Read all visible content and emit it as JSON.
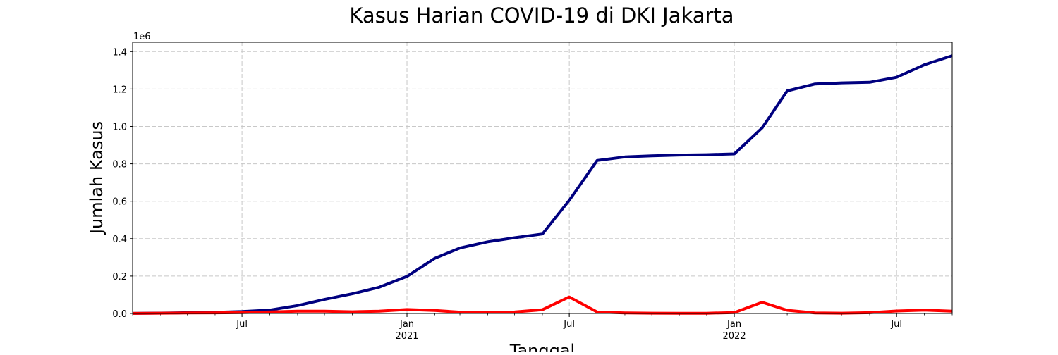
{
  "chart_data": {
    "type": "line",
    "title": "Kasus Harian COVID-19 di DKI Jakarta",
    "xlabel": "Tanggal",
    "ylabel": "Jumlah Kasus",
    "y_offset_label": "1e6",
    "y_scale_factor": 1000000,
    "ylim": [
      0,
      1450000
    ],
    "xlim": [
      "2020-03-01",
      "2022-09-01"
    ],
    "grid": true,
    "x": [
      "2020-03-01",
      "2020-04-01",
      "2020-05-01",
      "2020-06-01",
      "2020-07-01",
      "2020-08-01",
      "2020-09-01",
      "2020-10-01",
      "2020-11-01",
      "2020-12-01",
      "2021-01-01",
      "2021-02-01",
      "2021-03-01",
      "2021-04-01",
      "2021-05-01",
      "2021-06-01",
      "2021-07-01",
      "2021-08-01",
      "2021-09-01",
      "2021-10-01",
      "2021-11-01",
      "2021-12-01",
      "2022-01-01",
      "2022-02-01",
      "2022-03-01",
      "2022-04-01",
      "2022-05-01",
      "2022-06-01",
      "2022-07-01",
      "2022-08-01",
      "2022-09-01"
    ],
    "series": [
      {
        "color": "#00007f",
        "values": [
          500,
          2000,
          4000,
          6000,
          10000,
          18000,
          42000,
          75000,
          105000,
          140000,
          198000,
          295000,
          350000,
          383000,
          405000,
          425000,
          605000,
          818000,
          837000,
          843000,
          847000,
          849000,
          853000,
          992000,
          1190000,
          1227000,
          1233000,
          1236000,
          1263000,
          1330000,
          1378000
        ]
      },
      {
        "color": "#ff0000",
        "values": [
          500,
          1500,
          2500,
          3500,
          5000,
          8000,
          12000,
          12000,
          9000,
          12000,
          21000,
          16000,
          7000,
          7000,
          8000,
          20000,
          88000,
          8000,
          3000,
          1500,
          1000,
          1000,
          5000,
          60000,
          17000,
          3000,
          1500,
          4000,
          13000,
          18000,
          12000
        ]
      }
    ],
    "y_ticks": [
      "0.0",
      "0.2",
      "0.4",
      "0.6",
      "0.8",
      "1.0",
      "1.2",
      "1.4"
    ],
    "x_ticks": [
      {
        "date": "2020-07-01",
        "label": "Jul",
        "sublabel": ""
      },
      {
        "date": "2021-01-01",
        "label": "Jan",
        "sublabel": "2021"
      },
      {
        "date": "2021-07-01",
        "label": "Jul",
        "sublabel": ""
      },
      {
        "date": "2022-01-01",
        "label": "Jan",
        "sublabel": "2022"
      },
      {
        "date": "2022-07-01",
        "label": "Jul",
        "sublabel": ""
      }
    ]
  }
}
